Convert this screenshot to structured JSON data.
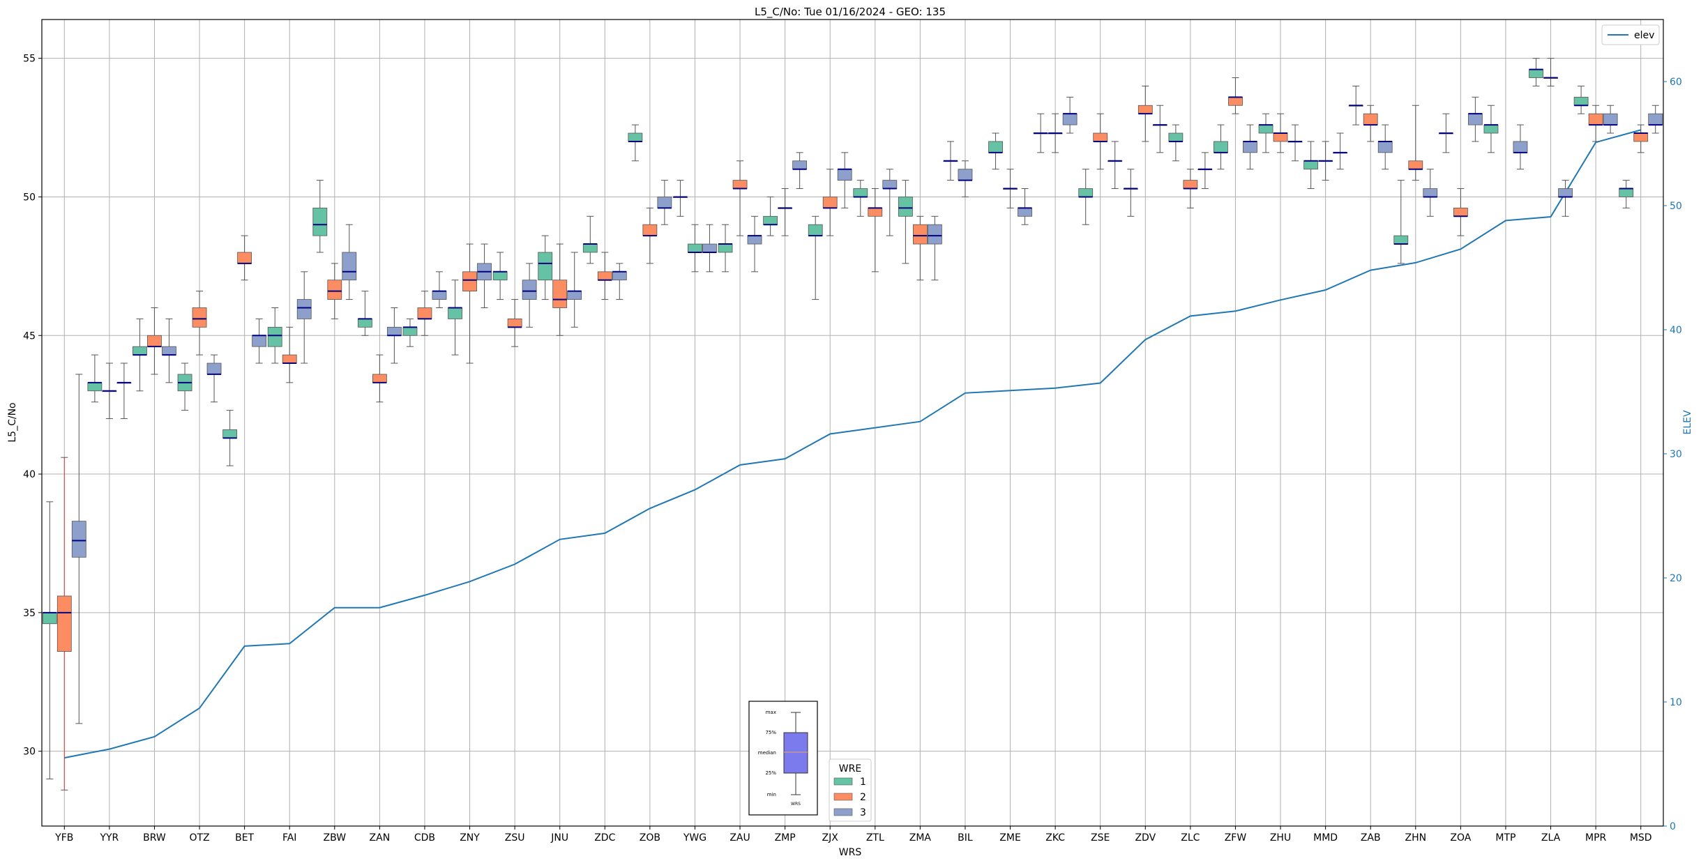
{
  "chart_data": {
    "type": "boxplot",
    "title": "L5_C/No: Tue 01/16/2024 - GEO: 135",
    "xlabel": "WRS",
    "ylabel": "L5_C/No",
    "y2label": "ELEV",
    "ylim": [
      27.3,
      56.4
    ],
    "y2lim": [
      0,
      65
    ],
    "yticks": [
      30,
      35,
      40,
      45,
      50,
      55
    ],
    "y2ticks": [
      0,
      10,
      20,
      30,
      40,
      50,
      60
    ],
    "grid": true,
    "legend_elev": {
      "placement": "top-right",
      "label": "elev"
    },
    "legend_wre": {
      "placement": "bottom-center",
      "title": "WRE",
      "entries": [
        "1",
        "2",
        "3"
      ]
    },
    "box_key": {
      "labels": [
        "max",
        "75%",
        "median",
        "25%",
        "min"
      ],
      "xlabel": "WRS"
    },
    "colors": {
      "1": "#66c2a5",
      "2": "#fc8d62",
      "3": "#8da0cb",
      "median": "#000080",
      "elev": "#1f77b4",
      "key_box": "#7b7bee"
    },
    "stations": [
      "YFB",
      "YYR",
      "BRW",
      "OTZ",
      "BET",
      "FAI",
      "ZBW",
      "ZAN",
      "CDB",
      "ZNY",
      "ZSU",
      "JNU",
      "ZDC",
      "ZOB",
      "YWG",
      "ZAU",
      "ZMP",
      "ZJX",
      "ZTL",
      "ZMA",
      "BIL",
      "ZME",
      "ZKC",
      "ZSE",
      "ZDV",
      "ZLC",
      "ZFW",
      "ZHU",
      "MMD",
      "ZAB",
      "ZHN",
      "ZOA",
      "MTP",
      "ZLA",
      "MPR",
      "MSD"
    ],
    "elev": [
      5.5,
      6.2,
      7.2,
      9.5,
      14.5,
      14.7,
      17.6,
      17.6,
      18.6,
      19.7,
      21.1,
      23.1,
      23.6,
      25.6,
      27.1,
      29.1,
      29.6,
      31.6,
      32.1,
      32.6,
      34.9,
      35.1,
      35.3,
      35.7,
      39.2,
      41.1,
      41.5,
      42.4,
      43.2,
      44.8,
      45.4,
      46.5,
      48.8,
      49.1,
      55.1,
      56.1
    ],
    "boxes": [
      [
        {
          "wre": "1",
          "min": 29.0,
          "q1": 34.6,
          "med": 35.0,
          "q3": 35.0,
          "max": 39.0
        },
        {
          "wre": "2",
          "min": 28.6,
          "q1": 33.6,
          "med": 35.0,
          "q3": 35.6,
          "max": 40.6
        },
        {
          "wre": "3",
          "min": 31.0,
          "q1": 37.0,
          "med": 37.6,
          "q3": 38.3,
          "max": 43.6
        }
      ],
      [
        {
          "wre": "1",
          "min": 42.6,
          "q1": 43.0,
          "med": 43.3,
          "q3": 43.3,
          "max": 44.3
        },
        {
          "wre": "2",
          "min": 42.0,
          "q1": 43.0,
          "med": 43.0,
          "q3": 43.0,
          "max": 44.0
        },
        {
          "wre": "3",
          "min": 42.0,
          "q1": 43.3,
          "med": 43.3,
          "q3": 43.3,
          "max": 44.0
        }
      ],
      [
        {
          "wre": "1",
          "min": 43.0,
          "q1": 44.3,
          "med": 44.3,
          "q3": 44.6,
          "max": 45.6
        },
        {
          "wre": "2",
          "min": 43.6,
          "q1": 44.6,
          "med": 44.6,
          "q3": 45.0,
          "max": 46.0
        },
        {
          "wre": "3",
          "min": 43.3,
          "q1": 44.3,
          "med": 44.3,
          "q3": 44.6,
          "max": 45.6
        }
      ],
      [
        {
          "wre": "1",
          "min": 42.3,
          "q1": 43.0,
          "med": 43.3,
          "q3": 43.6,
          "max": 44.0
        },
        {
          "wre": "2",
          "min": 44.3,
          "q1": 45.3,
          "med": 45.6,
          "q3": 46.0,
          "max": 46.6
        },
        {
          "wre": "3",
          "min": 42.6,
          "q1": 43.6,
          "med": 43.6,
          "q3": 44.0,
          "max": 44.3
        }
      ],
      [
        {
          "wre": "1",
          "min": 40.3,
          "q1": 41.3,
          "med": 41.3,
          "q3": 41.6,
          "max": 42.3
        },
        {
          "wre": "2",
          "min": 47.0,
          "q1": 47.6,
          "med": 47.6,
          "q3": 48.0,
          "max": 48.6
        },
        {
          "wre": "3",
          "min": 44.0,
          "q1": 44.6,
          "med": 45.0,
          "q3": 45.0,
          "max": 45.6
        }
      ],
      [
        {
          "wre": "1",
          "min": 44.0,
          "q1": 44.6,
          "med": 45.0,
          "q3": 45.3,
          "max": 46.0
        },
        {
          "wre": "2",
          "min": 43.3,
          "q1": 44.0,
          "med": 44.0,
          "q3": 44.3,
          "max": 45.3
        },
        {
          "wre": "3",
          "min": 44.0,
          "q1": 45.6,
          "med": 46.0,
          "q3": 46.3,
          "max": 47.3
        }
      ],
      [
        {
          "wre": "1",
          "min": 48.0,
          "q1": 48.6,
          "med": 49.0,
          "q3": 49.6,
          "max": 50.6
        },
        {
          "wre": "2",
          "min": 45.6,
          "q1": 46.3,
          "med": 46.6,
          "q3": 47.0,
          "max": 47.6
        },
        {
          "wre": "3",
          "min": 46.3,
          "q1": 47.0,
          "med": 47.3,
          "q3": 48.0,
          "max": 49.0
        }
      ],
      [
        {
          "wre": "1",
          "min": 45.0,
          "q1": 45.3,
          "med": 45.6,
          "q3": 45.6,
          "max": 46.6
        },
        {
          "wre": "2",
          "min": 42.6,
          "q1": 43.3,
          "med": 43.3,
          "q3": 43.6,
          "max": 44.3
        },
        {
          "wre": "3",
          "min": 44.0,
          "q1": 45.0,
          "med": 45.0,
          "q3": 45.3,
          "max": 46.0
        }
      ],
      [
        {
          "wre": "1",
          "min": 44.6,
          "q1": 45.0,
          "med": 45.3,
          "q3": 45.3,
          "max": 45.6
        },
        {
          "wre": "2",
          "min": 45.0,
          "q1": 45.6,
          "med": 45.6,
          "q3": 46.0,
          "max": 46.6
        },
        {
          "wre": "3",
          "min": 46.0,
          "q1": 46.3,
          "med": 46.6,
          "q3": 46.6,
          "max": 47.3
        }
      ],
      [
        {
          "wre": "1",
          "min": 44.3,
          "q1": 45.6,
          "med": 46.0,
          "q3": 46.0,
          "max": 47.0
        },
        {
          "wre": "2",
          "min": 44.0,
          "q1": 46.6,
          "med": 47.0,
          "q3": 47.3,
          "max": 48.3
        },
        {
          "wre": "3",
          "min": 46.0,
          "q1": 47.0,
          "med": 47.3,
          "q3": 47.6,
          "max": 48.3
        }
      ],
      [
        {
          "wre": "1",
          "min": 46.3,
          "q1": 47.0,
          "med": 47.3,
          "q3": 47.3,
          "max": 48.0
        },
        {
          "wre": "2",
          "min": 44.6,
          "q1": 45.3,
          "med": 45.3,
          "q3": 45.6,
          "max": 46.3
        },
        {
          "wre": "3",
          "min": 45.3,
          "q1": 46.3,
          "med": 46.6,
          "q3": 47.0,
          "max": 47.6
        }
      ],
      [
        {
          "wre": "1",
          "min": 46.3,
          "q1": 47.0,
          "med": 47.6,
          "q3": 48.0,
          "max": 48.6
        },
        {
          "wre": "2",
          "min": 45.0,
          "q1": 46.0,
          "med": 46.3,
          "q3": 47.0,
          "max": 48.3
        },
        {
          "wre": "3",
          "min": 45.3,
          "q1": 46.3,
          "med": 46.6,
          "q3": 46.6,
          "max": 48.0
        }
      ],
      [
        {
          "wre": "1",
          "min": 47.6,
          "q1": 48.0,
          "med": 48.3,
          "q3": 48.3,
          "max": 49.3
        },
        {
          "wre": "2",
          "min": 46.3,
          "q1": 47.0,
          "med": 47.0,
          "q3": 47.3,
          "max": 48.0
        },
        {
          "wre": "3",
          "min": 46.3,
          "q1": 47.0,
          "med": 47.3,
          "q3": 47.3,
          "max": 47.6
        }
      ],
      [
        {
          "wre": "1",
          "min": 51.3,
          "q1": 52.0,
          "med": 52.0,
          "q3": 52.3,
          "max": 52.6
        },
        {
          "wre": "2",
          "min": 47.6,
          "q1": 48.6,
          "med": 48.6,
          "q3": 49.0,
          "max": 49.6
        },
        {
          "wre": "3",
          "min": 49.0,
          "q1": 49.6,
          "med": 49.6,
          "q3": 50.0,
          "max": 50.6
        }
      ],
      [
        {
          "wre": "2",
          "min": 49.3,
          "q1": 50.0,
          "med": 50.0,
          "q3": 50.0,
          "max": 50.6
        },
        {
          "wre": "1",
          "min": 47.3,
          "q1": 48.0,
          "med": 48.0,
          "q3": 48.3,
          "max": 49.0
        },
        {
          "wre": "3",
          "min": 47.3,
          "q1": 48.0,
          "med": 48.0,
          "q3": 48.3,
          "max": 49.0
        }
      ],
      [
        {
          "wre": "1",
          "min": 47.3,
          "q1": 48.0,
          "med": 48.3,
          "q3": 48.3,
          "max": 49.0
        },
        {
          "wre": "2",
          "min": 48.6,
          "q1": 50.3,
          "med": 50.3,
          "q3": 50.6,
          "max": 51.3
        },
        {
          "wre": "3",
          "min": 47.3,
          "q1": 48.3,
          "med": 48.6,
          "q3": 48.6,
          "max": 49.3
        }
      ],
      [
        {
          "wre": "1",
          "min": 48.6,
          "q1": 49.0,
          "med": 49.0,
          "q3": 49.3,
          "max": 50.0
        },
        {
          "wre": "2",
          "min": 48.6,
          "q1": 49.6,
          "med": 49.6,
          "q3": 49.6,
          "max": 50.3
        },
        {
          "wre": "3",
          "min": 50.3,
          "q1": 51.0,
          "med": 51.0,
          "q3": 51.3,
          "max": 51.6
        }
      ],
      [
        {
          "wre": "1",
          "min": 46.3,
          "q1": 48.6,
          "med": 48.6,
          "q3": 49.0,
          "max": 49.3
        },
        {
          "wre": "2",
          "min": 48.6,
          "q1": 49.6,
          "med": 49.6,
          "q3": 50.0,
          "max": 51.0
        },
        {
          "wre": "3",
          "min": 49.6,
          "q1": 50.6,
          "med": 51.0,
          "q3": 51.0,
          "max": 51.6
        }
      ],
      [
        {
          "wre": "1",
          "min": 49.3,
          "q1": 50.0,
          "med": 50.0,
          "q3": 50.3,
          "max": 50.6
        },
        {
          "wre": "2",
          "min": 47.3,
          "q1": 49.3,
          "med": 49.6,
          "q3": 49.6,
          "max": 50.3
        },
        {
          "wre": "3",
          "min": 48.6,
          "q1": 50.3,
          "med": 50.3,
          "q3": 50.6,
          "max": 51.0
        }
      ],
      [
        {
          "wre": "1",
          "min": 47.6,
          "q1": 49.3,
          "med": 49.6,
          "q3": 50.0,
          "max": 50.6
        },
        {
          "wre": "2",
          "min": 47.0,
          "q1": 48.3,
          "med": 48.6,
          "q3": 49.0,
          "max": 49.3
        },
        {
          "wre": "3",
          "min": 47.0,
          "q1": 48.3,
          "med": 48.6,
          "q3": 49.0,
          "max": 49.3
        }
      ],
      [
        {
          "wre": "2",
          "min": 50.6,
          "q1": 51.3,
          "med": 51.3,
          "q3": 51.3,
          "max": 52.0
        },
        {
          "wre": "3",
          "min": 50.0,
          "q1": 50.6,
          "med": 50.6,
          "q3": 51.0,
          "max": 51.3
        }
      ],
      [
        {
          "wre": "1",
          "min": 51.0,
          "q1": 51.6,
          "med": 51.6,
          "q3": 52.0,
          "max": 52.3
        },
        {
          "wre": "2",
          "min": 49.6,
          "q1": 50.3,
          "med": 50.3,
          "q3": 50.3,
          "max": 51.0
        },
        {
          "wre": "3",
          "min": 49.0,
          "q1": 49.3,
          "med": 49.6,
          "q3": 49.6,
          "max": 50.3
        }
      ],
      [
        {
          "wre": "1",
          "min": 51.6,
          "q1": 52.3,
          "med": 52.3,
          "q3": 52.3,
          "max": 53.0
        },
        {
          "wre": "2",
          "min": 51.6,
          "q1": 52.3,
          "med": 52.3,
          "q3": 52.3,
          "max": 53.0
        },
        {
          "wre": "3",
          "min": 52.3,
          "q1": 52.6,
          "med": 53.0,
          "q3": 53.0,
          "max": 53.6
        }
      ],
      [
        {
          "wre": "1",
          "min": 49.0,
          "q1": 50.0,
          "med": 50.0,
          "q3": 50.3,
          "max": 51.0
        },
        {
          "wre": "2",
          "min": 51.0,
          "q1": 52.0,
          "med": 52.0,
          "q3": 52.3,
          "max": 53.0
        },
        {
          "wre": "3",
          "min": 50.3,
          "q1": 51.3,
          "med": 51.3,
          "q3": 51.3,
          "max": 52.0
        }
      ],
      [
        {
          "wre": "1",
          "min": 49.3,
          "q1": 50.3,
          "med": 50.3,
          "q3": 50.3,
          "max": 51.0
        },
        {
          "wre": "2",
          "min": 52.0,
          "q1": 53.0,
          "med": 53.0,
          "q3": 53.3,
          "max": 54.0
        },
        {
          "wre": "3",
          "min": 51.6,
          "q1": 52.6,
          "med": 52.6,
          "q3": 52.6,
          "max": 53.3
        }
      ],
      [
        {
          "wre": "1",
          "min": 51.3,
          "q1": 52.0,
          "med": 52.0,
          "q3": 52.3,
          "max": 52.6
        },
        {
          "wre": "2",
          "min": 49.6,
          "q1": 50.3,
          "med": 50.3,
          "q3": 50.6,
          "max": 51.0
        },
        {
          "wre": "3",
          "min": 50.3,
          "q1": 51.0,
          "med": 51.0,
          "q3": 51.0,
          "max": 51.6
        }
      ],
      [
        {
          "wre": "1",
          "min": 51.0,
          "q1": 51.6,
          "med": 51.6,
          "q3": 52.0,
          "max": 52.6
        },
        {
          "wre": "2",
          "min": 53.0,
          "q1": 53.3,
          "med": 53.6,
          "q3": 53.6,
          "max": 54.3
        },
        {
          "wre": "3",
          "min": 51.0,
          "q1": 51.6,
          "med": 52.0,
          "q3": 52.0,
          "max": 52.6
        }
      ],
      [
        {
          "wre": "1",
          "min": 51.6,
          "q1": 52.3,
          "med": 52.6,
          "q3": 52.6,
          "max": 53.0
        },
        {
          "wre": "2",
          "min": 51.6,
          "q1": 52.0,
          "med": 52.3,
          "q3": 52.3,
          "max": 53.0
        },
        {
          "wre": "3",
          "min": 51.3,
          "q1": 52.0,
          "med": 52.0,
          "q3": 52.0,
          "max": 52.6
        }
      ],
      [
        {
          "wre": "1",
          "min": 50.3,
          "q1": 51.0,
          "med": 51.3,
          "q3": 51.3,
          "max": 52.0
        },
        {
          "wre": "2",
          "min": 50.6,
          "q1": 51.3,
          "med": 51.3,
          "q3": 51.3,
          "max": 52.0
        },
        {
          "wre": "3",
          "min": 51.0,
          "q1": 51.6,
          "med": 51.6,
          "q3": 51.6,
          "max": 52.3
        }
      ],
      [
        {
          "wre": "1",
          "min": 52.6,
          "q1": 53.3,
          "med": 53.3,
          "q3": 53.3,
          "max": 54.0
        },
        {
          "wre": "2",
          "min": 52.0,
          "q1": 52.6,
          "med": 52.6,
          "q3": 53.0,
          "max": 53.3
        },
        {
          "wre": "3",
          "min": 51.0,
          "q1": 51.6,
          "med": 52.0,
          "q3": 52.0,
          "max": 52.6
        }
      ],
      [
        {
          "wre": "1",
          "min": 47.6,
          "q1": 48.3,
          "med": 48.3,
          "q3": 48.6,
          "max": 50.6
        },
        {
          "wre": "2",
          "min": 50.6,
          "q1": 51.0,
          "med": 51.0,
          "q3": 51.3,
          "max": 53.3
        },
        {
          "wre": "3",
          "min": 49.3,
          "q1": 50.0,
          "med": 50.0,
          "q3": 50.3,
          "max": 51.0
        }
      ],
      [
        {
          "wre": "1",
          "min": 51.6,
          "q1": 52.3,
          "med": 52.3,
          "q3": 52.3,
          "max": 53.0
        },
        {
          "wre": "2",
          "min": 48.6,
          "q1": 49.3,
          "med": 49.3,
          "q3": 49.6,
          "max": 50.3
        },
        {
          "wre": "3",
          "min": 52.0,
          "q1": 52.6,
          "med": 53.0,
          "q3": 53.0,
          "max": 53.6
        }
      ],
      [
        {
          "wre": "1",
          "min": 51.6,
          "q1": 52.3,
          "med": 52.6,
          "q3": 52.6,
          "max": 53.3
        },
        {
          "wre": "2",
          "min": null,
          "q1": null,
          "med": null,
          "q3": null,
          "max": null
        },
        {
          "wre": "3",
          "min": 51.0,
          "q1": 51.6,
          "med": 51.6,
          "q3": 52.0,
          "max": 52.6
        }
      ],
      [
        {
          "wre": "1",
          "min": 54.0,
          "q1": 54.3,
          "med": 54.6,
          "q3": 54.6,
          "max": 55.0
        },
        {
          "wre": "2",
          "min": 54.0,
          "q1": 54.3,
          "med": 54.3,
          "q3": 54.3,
          "max": 55.0
        },
        {
          "wre": "3",
          "min": 49.3,
          "q1": 50.0,
          "med": 50.0,
          "q3": 50.3,
          "max": 50.6
        }
      ],
      [
        {
          "wre": "1",
          "min": 53.0,
          "q1": 53.3,
          "med": 53.3,
          "q3": 53.6,
          "max": 54.0
        },
        {
          "wre": "2",
          "min": 52.0,
          "q1": 52.6,
          "med": 52.6,
          "q3": 53.0,
          "max": 53.3
        },
        {
          "wre": "3",
          "min": 52.3,
          "q1": 52.6,
          "med": 52.6,
          "q3": 53.0,
          "max": 53.3
        }
      ],
      [
        {
          "wre": "1",
          "min": 49.6,
          "q1": 50.0,
          "med": 50.3,
          "q3": 50.3,
          "max": 50.6
        },
        {
          "wre": "2",
          "min": 51.6,
          "q1": 52.0,
          "med": 52.3,
          "q3": 52.3,
          "max": 52.6
        },
        {
          "wre": "3",
          "min": 52.3,
          "q1": 52.6,
          "med": 52.6,
          "q3": 53.0,
          "max": 53.3
        }
      ]
    ]
  }
}
